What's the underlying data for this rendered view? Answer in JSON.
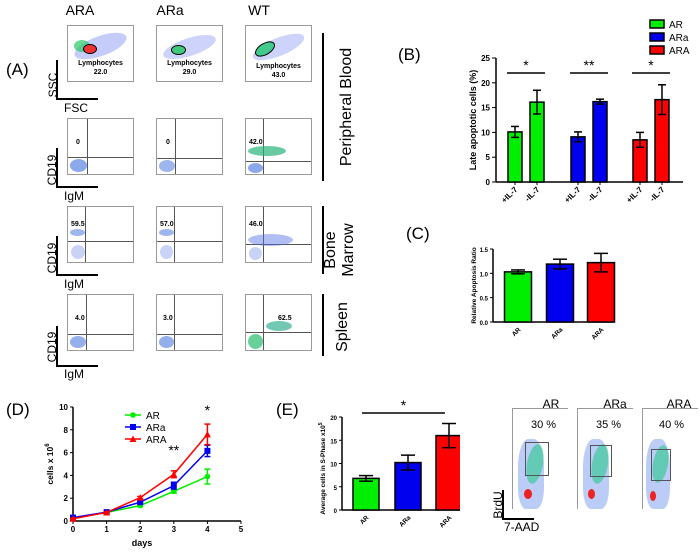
{
  "panels": {
    "A": {
      "label": "(A)",
      "columns": [
        "ARA",
        "ARa",
        "WT"
      ],
      "axes": {
        "ssc": "SSC",
        "fsc": "FSC",
        "cd19": "CD19",
        "igm": "IgM"
      },
      "tissues": [
        "Peripheral Blood",
        "Bone Marrow",
        "Spleen"
      ],
      "tissue_lines": {
        "bone": [
          "Bone",
          "Marrow"
        ]
      },
      "lymphocyte_label": "Lymphocytes",
      "lymphocytes": [
        "22.0",
        "29.0",
        "43.0"
      ],
      "pb_cd19": [
        "0",
        "0",
        "42.0"
      ],
      "bm_cd19": [
        "59.5",
        "57.0",
        "46.0"
      ],
      "sp_cd19": [
        "4.0",
        "3.0",
        "62.5"
      ]
    },
    "B": {
      "label": "(B)"
    },
    "C": {
      "label": "(C)"
    },
    "D": {
      "label": "(D)"
    },
    "E": {
      "label": "(E)"
    },
    "E_flow": {
      "columns": [
        "AR",
        "ARa",
        "ARA"
      ],
      "percents": [
        "30 %",
        "35 %",
        "40 %"
      ],
      "ylabel": "BrdU",
      "xlabel": "7-AAD"
    }
  },
  "colors": {
    "AR": "#00ee00",
    "ARa": "#0000ee",
    "ARA": "#ff0000"
  },
  "chart_data": [
    {
      "id": "B",
      "type": "bar",
      "title": "",
      "ylabel": "Late apoptotic cells (%)",
      "xlabel": "",
      "ylim": [
        0,
        25
      ],
      "yticks": [
        0,
        5,
        10,
        15,
        20,
        25
      ],
      "legend": {
        "placement": "top-right",
        "entries": [
          "AR",
          "ARa",
          "ARA"
        ]
      },
      "categories": [
        "+IL-7",
        "-IL-7",
        "+IL-7",
        "-IL-7",
        "+IL-7",
        "-IL-7"
      ],
      "groups": [
        {
          "name": "AR",
          "values": [
            10.1,
            16.1
          ],
          "errors": [
            1.1,
            2.4
          ],
          "significance": "*"
        },
        {
          "name": "ARa",
          "values": [
            9.1,
            16.2
          ],
          "errors": [
            1.0,
            0.5
          ],
          "significance": "**"
        },
        {
          "name": "ARA",
          "values": [
            8.5,
            16.6
          ],
          "errors": [
            1.5,
            3.0
          ],
          "significance": "*"
        }
      ]
    },
    {
      "id": "C",
      "type": "bar",
      "ylabel": "Relative Apoptosis Ratio",
      "xlabel": "",
      "ylim": [
        0,
        1.5
      ],
      "yticks": [
        "0.0",
        "0.5",
        "1.0",
        "1.5"
      ],
      "categories": [
        "AR",
        "ARa",
        "ARA"
      ],
      "values": [
        1.03,
        1.19,
        1.22
      ],
      "errors": [
        0.04,
        0.1,
        0.19
      ]
    },
    {
      "id": "D",
      "type": "line",
      "xlabel": "days",
      "ylabel": "cells x 10",
      "ylabel_sup": "6",
      "xlim": [
        0,
        5
      ],
      "ylim": [
        0,
        10
      ],
      "xticks": [
        0,
        1,
        2,
        3,
        4,
        5
      ],
      "yticks": [
        0,
        2,
        4,
        6,
        8,
        10
      ],
      "legend": {
        "placement": "top-center",
        "entries": [
          "AR",
          "ARa",
          "ARA"
        ]
      },
      "x": [
        0,
        1,
        2,
        3,
        4
      ],
      "series": [
        {
          "name": "AR",
          "marker": "circle",
          "values": [
            0.25,
            0.75,
            1.35,
            2.6,
            3.9
          ],
          "errors": [
            0.05,
            0.05,
            0.1,
            0.15,
            0.65
          ]
        },
        {
          "name": "ARa",
          "marker": "square",
          "values": [
            0.3,
            0.78,
            1.65,
            3.1,
            6.15
          ],
          "errors": [
            0.05,
            0.05,
            0.1,
            0.3,
            0.5
          ]
        },
        {
          "name": "ARA",
          "marker": "triangle",
          "values": [
            0.2,
            0.75,
            2.05,
            4.1,
            7.6
          ],
          "errors": [
            0.05,
            0.05,
            0.1,
            0.3,
            0.9
          ]
        }
      ],
      "annotations": [
        {
          "x": 3,
          "text": "**"
        },
        {
          "x": 4,
          "text": "*"
        }
      ]
    },
    {
      "id": "E",
      "type": "bar",
      "ylabel": "Average cells in S-Phase x10",
      "ylabel_sup": "5",
      "xlabel": "",
      "ylim": [
        0,
        20
      ],
      "yticks": [
        0,
        5,
        10,
        15,
        20
      ],
      "categories": [
        "AR",
        "ARa",
        "ARA"
      ],
      "values": [
        6.8,
        10.2,
        16.0
      ],
      "errors": [
        0.6,
        1.6,
        2.6
      ],
      "annotations": [
        {
          "from": "AR",
          "to": "ARA",
          "text": "*"
        }
      ]
    }
  ]
}
